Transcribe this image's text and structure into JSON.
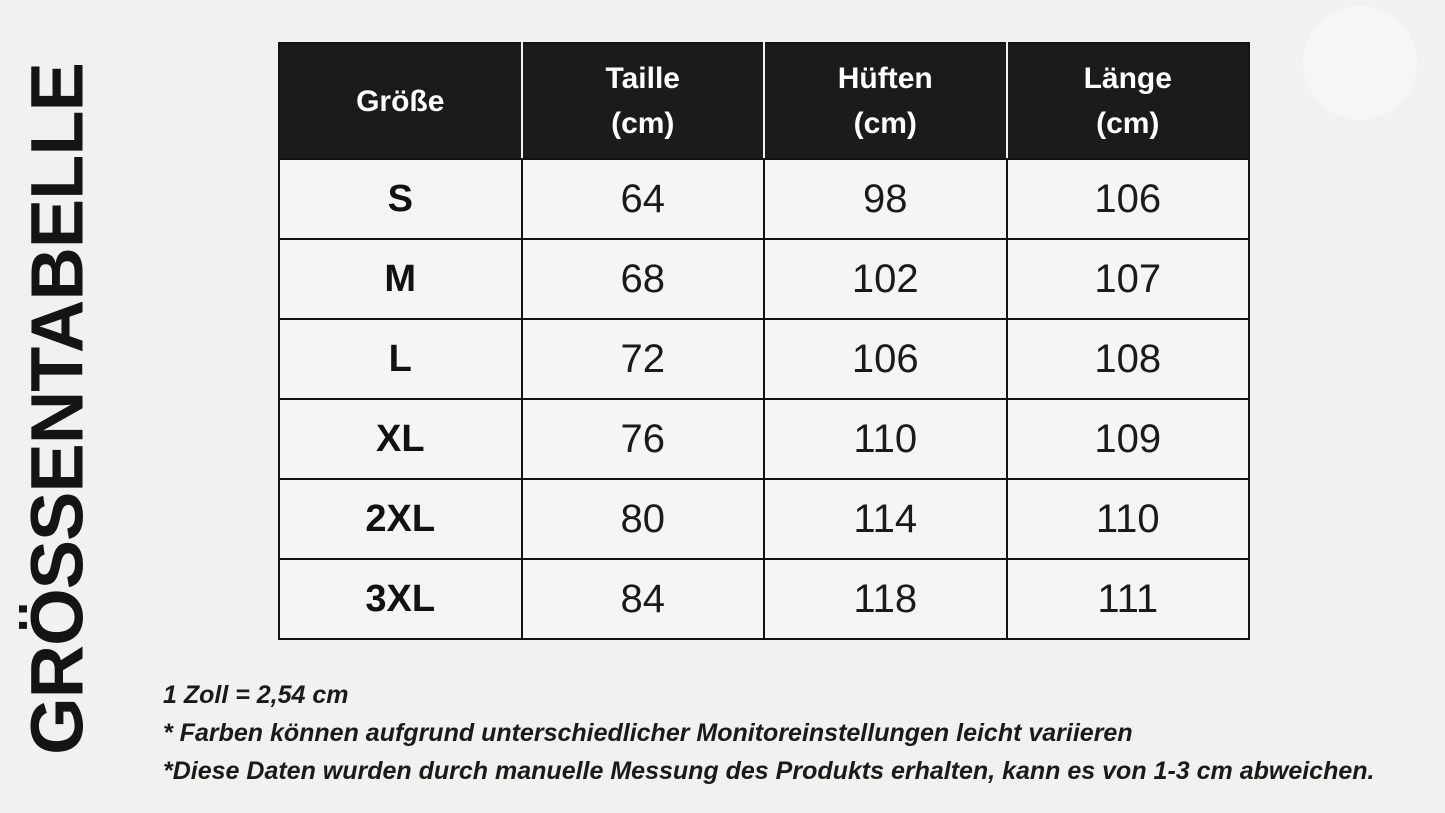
{
  "title": {
    "vertical_label": "GRÖSSENTABELLE"
  },
  "table": {
    "headers": [
      "Größe",
      "Taille\n(cm)",
      "Hüften\n(cm)",
      "Länge\n(cm)"
    ],
    "rows": [
      [
        "S",
        "64",
        "98",
        "106"
      ],
      [
        "M",
        "68",
        "102",
        "107"
      ],
      [
        "L",
        "72",
        "106",
        "108"
      ],
      [
        "XL",
        "76",
        "110",
        "109"
      ],
      [
        "2XL",
        "80",
        "114",
        "110"
      ],
      [
        "3XL",
        "84",
        "118",
        "111"
      ]
    ]
  },
  "notes": [
    "1 Zoll = 2,54 cm",
    "* Farben können aufgrund unterschiedlicher Monitoreinstellungen leicht variieren",
    "*Diese Daten wurden durch manuelle Messung des Produkts erhalten, kann es von 1-3 cm abweichen."
  ],
  "colors": {
    "page_background": "#f1f1ef",
    "header_background": "#1b1b1b",
    "header_text": "#ffffff",
    "cell_background": "#f5f5f3",
    "border": "#121212",
    "text": "#1a1a1a"
  },
  "chart_data": {
    "type": "table",
    "title": "GRÖSSENTABELLE",
    "columns": [
      "Größe",
      "Taille (cm)",
      "Hüften (cm)",
      "Länge (cm)"
    ],
    "rows": [
      [
        "S",
        64,
        98,
        106
      ],
      [
        "M",
        68,
        102,
        107
      ],
      [
        "L",
        72,
        106,
        108
      ],
      [
        "XL",
        76,
        110,
        109
      ],
      [
        "2XL",
        80,
        114,
        110
      ],
      [
        "3XL",
        84,
        118,
        111
      ]
    ],
    "notes": [
      "1 Zoll = 2,54 cm",
      "* Farben können aufgrund unterschiedlicher Monitoreinstellungen leicht variieren",
      "*Diese Daten wurden durch manuelle Messung des Produkts erhalten, kann es von 1-3 cm abweichen."
    ]
  }
}
